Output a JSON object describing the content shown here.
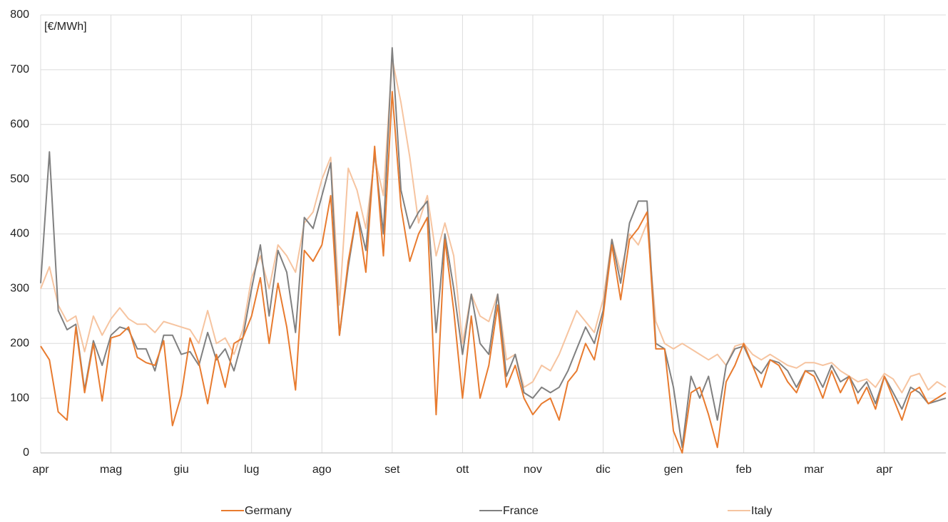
{
  "chart_data": {
    "type": "line",
    "annotation": "[€/MWh]",
    "categories": [
      "apr",
      null,
      null,
      null,
      null,
      null,
      null,
      null,
      "mag",
      null,
      null,
      null,
      null,
      null,
      null,
      null,
      "giu",
      null,
      null,
      null,
      null,
      null,
      null,
      null,
      "lug",
      null,
      null,
      null,
      null,
      null,
      null,
      null,
      "ago",
      null,
      null,
      null,
      null,
      null,
      null,
      null,
      "set",
      null,
      null,
      null,
      null,
      null,
      null,
      null,
      "ott",
      null,
      null,
      null,
      null,
      null,
      null,
      null,
      "nov",
      null,
      null,
      null,
      null,
      null,
      null,
      null,
      "dic",
      null,
      null,
      null,
      null,
      null,
      null,
      null,
      "gen",
      null,
      null,
      null,
      null,
      null,
      null,
      null,
      "feb",
      null,
      null,
      null,
      null,
      null,
      null,
      null,
      "mar",
      null,
      null,
      null,
      null,
      null,
      null,
      null,
      "apr",
      null,
      null,
      null,
      null,
      null,
      null,
      null
    ],
    "series": [
      {
        "name": "Germany",
        "color": "#e87b2f",
        "values": [
          195,
          170,
          75,
          60,
          230,
          110,
          200,
          95,
          210,
          215,
          230,
          175,
          165,
          160,
          205,
          50,
          105,
          210,
          165,
          90,
          180,
          120,
          200,
          210,
          250,
          320,
          200,
          310,
          230,
          115,
          370,
          350,
          380,
          470,
          215,
          350,
          440,
          330,
          560,
          360,
          660,
          450,
          350,
          400,
          430,
          70,
          390,
          260,
          100,
          250,
          100,
          160,
          270,
          120,
          160,
          100,
          70,
          90,
          100,
          60,
          130,
          150,
          200,
          170,
          250,
          380,
          280,
          390,
          410,
          440,
          190,
          190,
          40,
          0,
          110,
          120,
          70,
          10,
          130,
          160,
          200,
          160,
          120,
          170,
          160,
          130,
          110,
          150,
          140,
          100,
          150,
          110,
          140,
          90,
          120,
          80,
          140,
          100,
          60,
          110,
          120,
          90,
          100,
          110
        ]
      },
      {
        "name": "France",
        "color": "#808080",
        "values": [
          310,
          550,
          260,
          225,
          235,
          115,
          205,
          160,
          215,
          230,
          225,
          190,
          190,
          150,
          215,
          215,
          180,
          185,
          160,
          220,
          170,
          190,
          150,
          210,
          300,
          380,
          250,
          370,
          330,
          220,
          430,
          410,
          470,
          530,
          215,
          340,
          440,
          370,
          550,
          400,
          740,
          480,
          410,
          440,
          460,
          220,
          400,
          300,
          180,
          290,
          200,
          180,
          290,
          140,
          180,
          110,
          100,
          120,
          110,
          120,
          150,
          190,
          230,
          200,
          260,
          390,
          310,
          420,
          460,
          460,
          200,
          190,
          120,
          10,
          140,
          100,
          140,
          60,
          160,
          190,
          195,
          160,
          145,
          170,
          165,
          150,
          120,
          150,
          150,
          120,
          160,
          130,
          140,
          110,
          130,
          90,
          140,
          110,
          80,
          120,
          110,
          90,
          95,
          100
        ]
      },
      {
        "name": "Italy",
        "color": "#f6c4a0",
        "values": [
          300,
          340,
          270,
          240,
          250,
          185,
          250,
          215,
          245,
          265,
          245,
          235,
          235,
          220,
          240,
          235,
          230,
          225,
          200,
          260,
          200,
          210,
          180,
          225,
          320,
          360,
          300,
          380,
          360,
          330,
          420,
          440,
          500,
          540,
          270,
          520,
          480,
          410,
          540,
          470,
          720,
          640,
          540,
          420,
          470,
          360,
          420,
          360,
          200,
          290,
          250,
          240,
          290,
          170,
          180,
          120,
          130,
          160,
          150,
          180,
          220,
          260,
          240,
          220,
          280,
          390,
          330,
          400,
          380,
          420,
          240,
          200,
          190,
          200,
          190,
          180,
          170,
          180,
          160,
          195,
          200,
          180,
          170,
          180,
          170,
          160,
          155,
          165,
          165,
          160,
          165,
          150,
          140,
          130,
          135,
          120,
          145,
          135,
          110,
          140,
          145,
          115,
          130,
          120
        ]
      }
    ],
    "ylim": [
      0,
      800
    ],
    "yticks": [
      0,
      100,
      200,
      300,
      400,
      500,
      600,
      700,
      800
    ],
    "grid": true,
    "legend": "bottom"
  }
}
